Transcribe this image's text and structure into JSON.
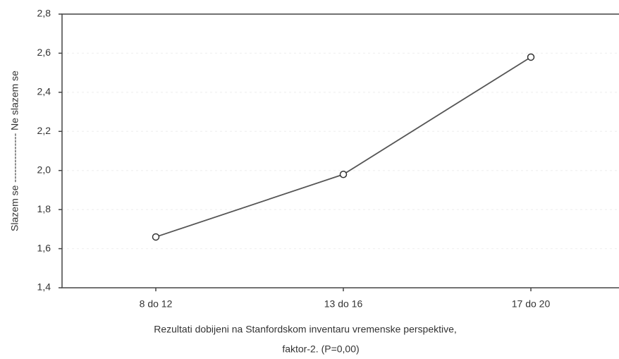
{
  "chart_data": {
    "type": "line",
    "categories": [
      "8 do 12",
      "13 do 16",
      "17 do 20"
    ],
    "series": [
      {
        "name": null,
        "color": "#555555",
        "values": [
          1.66,
          1.98,
          2.58
        ]
      }
    ],
    "ylim": [
      1.4,
      2.8
    ],
    "yticks": [
      {
        "value": 1.4,
        "label": "1,4"
      },
      {
        "value": 1.6,
        "label": "1,6"
      },
      {
        "value": 1.8,
        "label": "1,8"
      },
      {
        "value": 2.0,
        "label": "2,0"
      },
      {
        "value": 2.2,
        "label": "2,2"
      },
      {
        "value": 2.4,
        "label": "2,4"
      },
      {
        "value": 2.6,
        "label": "2,6"
      },
      {
        "value": 2.8,
        "label": "2,8"
      }
    ],
    "y_label": "Slazem se --------------- Ne slazem se",
    "x_label": [
      "Rezultati dobijeni na Stanfordskom inventaru vremenske perspektive,",
      "faktor-2. (P=0,00)"
    ],
    "grid": true
  }
}
